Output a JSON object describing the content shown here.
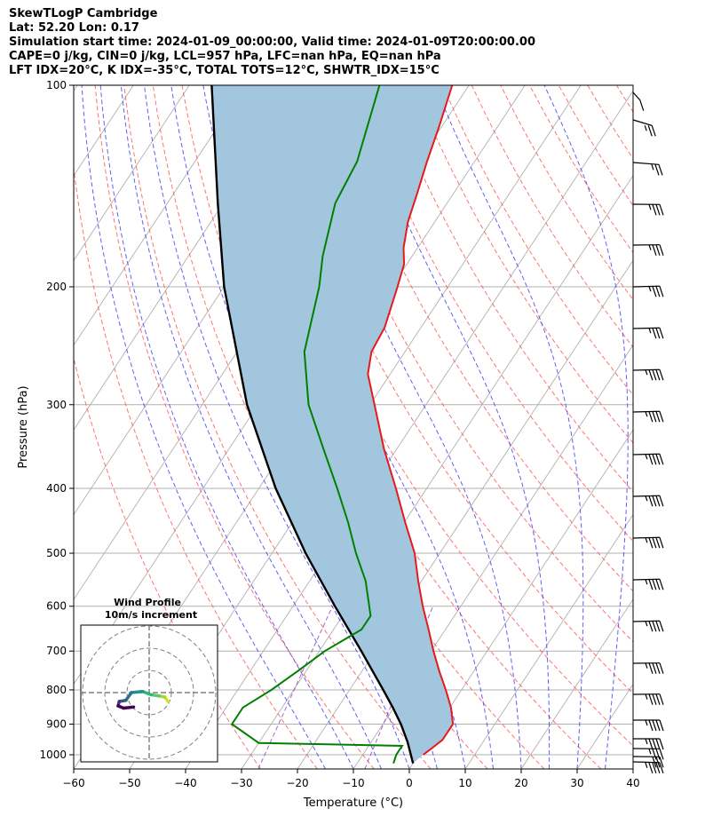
{
  "header": {
    "line1": "SkewTLogP Cambridge",
    "line2": "Lat: 52.20   Lon: 0.17",
    "line3": "Simulation start time: 2024-01-09_00:00:00, Valid time: 2024-01-09T20:00:00.00",
    "line4": "CAPE=0 j/kg, CIN=0 j/kg, LCL=957 hPa, LFC=nan hPa, EQ=nan hPa",
    "line5": "LFT IDX=20°C, K IDX=-35°C, TOTAL TOTS=12°C, SHWTR_IDX=15°C"
  },
  "colors": {
    "temperature": "#e41a1c",
    "dewpoint": "#008000",
    "parcel": "#000000",
    "cape_fill": "#a3c6df",
    "dry_adiabat": "#ff5050",
    "moist_adiabat": "#3a3af5",
    "mixing_ratio": "#9040c0",
    "isotherm": "#b0b0b0",
    "grid": "#b0b0b0"
  },
  "chart_data": {
    "type": "skewt-logp",
    "xlabel": "Temperature (°C)",
    "ylabel": "Pressure (hPa)",
    "xlim": [
      -60,
      40
    ],
    "ylim": [
      1050,
      100
    ],
    "xticks": [
      "−60",
      "−50",
      "−40",
      "−30",
      "−20",
      "−10",
      "0",
      "10",
      "20",
      "30",
      "40"
    ],
    "yticks": [
      "1000",
      "900",
      "800",
      "700",
      "600",
      "500",
      "400",
      "300",
      "200",
      "100"
    ],
    "ytick_values": [
      1000,
      900,
      800,
      700,
      600,
      500,
      400,
      300,
      200,
      100
    ],
    "temperature": [
      {
        "p": 1000,
        "t": 0.8
      },
      {
        "p": 980,
        "t": 1.5
      },
      {
        "p": 950,
        "t": 2.5
      },
      {
        "p": 900,
        "t": 2.5
      },
      {
        "p": 850,
        "t": 0.2
      },
      {
        "p": 800,
        "t": -2.8
      },
      {
        "p": 750,
        "t": -6.2
      },
      {
        "p": 700,
        "t": -9.6
      },
      {
        "p": 650,
        "t": -13.0
      },
      {
        "p": 600,
        "t": -16.8
      },
      {
        "p": 550,
        "t": -20.6
      },
      {
        "p": 500,
        "t": -24.5
      },
      {
        "p": 450,
        "t": -29.8
      },
      {
        "p": 400,
        "t": -35.5
      },
      {
        "p": 350,
        "t": -42.2
      },
      {
        "p": 300,
        "t": -49.2
      },
      {
        "p": 270,
        "t": -54.0
      },
      {
        "p": 250,
        "t": -56.0
      },
      {
        "p": 230,
        "t": -56.5
      },
      {
        "p": 200,
        "t": -59.0
      },
      {
        "p": 185,
        "t": -60.5
      },
      {
        "p": 175,
        "t": -62.5
      },
      {
        "p": 160,
        "t": -64.8
      },
      {
        "p": 145,
        "t": -66.5
      },
      {
        "p": 130,
        "t": -68.5
      },
      {
        "p": 115,
        "t": -70.5
      },
      {
        "p": 100,
        "t": -73.0
      }
    ],
    "dewpoint": [
      {
        "p": 1030,
        "t": -3.5
      },
      {
        "p": 1000,
        "t": -4.0
      },
      {
        "p": 970,
        "t": -4.0
      },
      {
        "p": 960,
        "t": -30.0
      },
      {
        "p": 900,
        "t": -37.0
      },
      {
        "p": 850,
        "t": -37.0
      },
      {
        "p": 800,
        "t": -34.0
      },
      {
        "p": 750,
        "t": -31.5
      },
      {
        "p": 700,
        "t": -29.0
      },
      {
        "p": 650,
        "t": -25.0
      },
      {
        "p": 620,
        "t": -25.0
      },
      {
        "p": 550,
        "t": -30.0
      },
      {
        "p": 500,
        "t": -35.0
      },
      {
        "p": 450,
        "t": -40.0
      },
      {
        "p": 400,
        "t": -46.0
      },
      {
        "p": 350,
        "t": -53.0
      },
      {
        "p": 300,
        "t": -61.0
      },
      {
        "p": 250,
        "t": -68.0
      },
      {
        "p": 200,
        "t": -73.0
      },
      {
        "p": 180,
        "t": -76.0
      },
      {
        "p": 150,
        "t": -80.0
      },
      {
        "p": 130,
        "t": -81.0
      },
      {
        "p": 100,
        "t": -86.0
      }
    ],
    "parcel": [
      {
        "p": 1030,
        "t": 0.0
      },
      {
        "p": 957,
        "t": -3.5
      },
      {
        "p": 900,
        "t": -6.8
      },
      {
        "p": 850,
        "t": -10.2
      },
      {
        "p": 800,
        "t": -14.0
      },
      {
        "p": 700,
        "t": -22.5
      },
      {
        "p": 600,
        "t": -32.5
      },
      {
        "p": 500,
        "t": -44.0
      },
      {
        "p": 400,
        "t": -57.0
      },
      {
        "p": 300,
        "t": -72.0
      },
      {
        "p": 200,
        "t": -90.0
      },
      {
        "p": 150,
        "t": -101.0
      },
      {
        "p": 100,
        "t": -116.0
      }
    ],
    "wind_barbs_hpa": [
      1000,
      975,
      950,
      925,
      900,
      850,
      800,
      750,
      700,
      650,
      600,
      550,
      500,
      450,
      400,
      350,
      300,
      275,
      250,
      225,
      200,
      175,
      150,
      125,
      100
    ],
    "wind_barbs": [
      {
        "p": 1000,
        "speed_kt": 25,
        "dir_deg": 250
      },
      {
        "p": 975,
        "speed_kt": 30,
        "dir_deg": 255
      },
      {
        "p": 950,
        "speed_kt": 35,
        "dir_deg": 258
      },
      {
        "p": 925,
        "speed_kt": 35,
        "dir_deg": 262
      },
      {
        "p": 900,
        "speed_kt": 35,
        "dir_deg": 265
      },
      {
        "p": 850,
        "speed_kt": 30,
        "dir_deg": 268
      },
      {
        "p": 800,
        "speed_kt": 25,
        "dir_deg": 268
      },
      {
        "p": 750,
        "speed_kt": 35,
        "dir_deg": 270
      },
      {
        "p": 700,
        "speed_kt": 35,
        "dir_deg": 270
      },
      {
        "p": 650,
        "speed_kt": 35,
        "dir_deg": 272
      },
      {
        "p": 600,
        "speed_kt": 35,
        "dir_deg": 272
      },
      {
        "p": 550,
        "speed_kt": 35,
        "dir_deg": 275
      },
      {
        "p": 500,
        "speed_kt": 35,
        "dir_deg": 275
      },
      {
        "p": 450,
        "speed_kt": 35,
        "dir_deg": 275
      },
      {
        "p": 400,
        "speed_kt": 35,
        "dir_deg": 275
      },
      {
        "p": 350,
        "speed_kt": 35,
        "dir_deg": 275
      },
      {
        "p": 300,
        "speed_kt": 35,
        "dir_deg": 275
      },
      {
        "p": 275,
        "speed_kt": 35,
        "dir_deg": 275
      },
      {
        "p": 250,
        "speed_kt": 25,
        "dir_deg": 275
      },
      {
        "p": 225,
        "speed_kt": 25,
        "dir_deg": 275
      },
      {
        "p": 200,
        "speed_kt": 25,
        "dir_deg": 272
      },
      {
        "p": 175,
        "speed_kt": 25,
        "dir_deg": 268
      },
      {
        "p": 150,
        "speed_kt": 15,
        "dir_deg": 255
      },
      {
        "p": 125,
        "speed_kt": 15,
        "dir_deg": 225
      },
      {
        "p": 100,
        "speed_kt": 10,
        "dir_deg": 195
      }
    ],
    "inset": {
      "title_line1": "Wind Profile",
      "title_line2": "10m/s increment",
      "ring_increment_ms": 10,
      "hodograph_ms": [
        {
          "u": 8.5,
          "v": -4.0
        },
        {
          "u": 7.0,
          "v": -2.0
        },
        {
          "u": 4.5,
          "v": -1.5
        },
        {
          "u": 1.0,
          "v": -1.0
        },
        {
          "u": -3.0,
          "v": 0.5
        },
        {
          "u": -8.0,
          "v": 0.0
        },
        {
          "u": -10.5,
          "v": -3.5
        },
        {
          "u": -13.5,
          "v": -4.0
        },
        {
          "u": -14.0,
          "v": -6.0
        },
        {
          "u": -11.5,
          "v": -7.0
        },
        {
          "u": -7.0,
          "v": -6.5
        }
      ]
    }
  }
}
